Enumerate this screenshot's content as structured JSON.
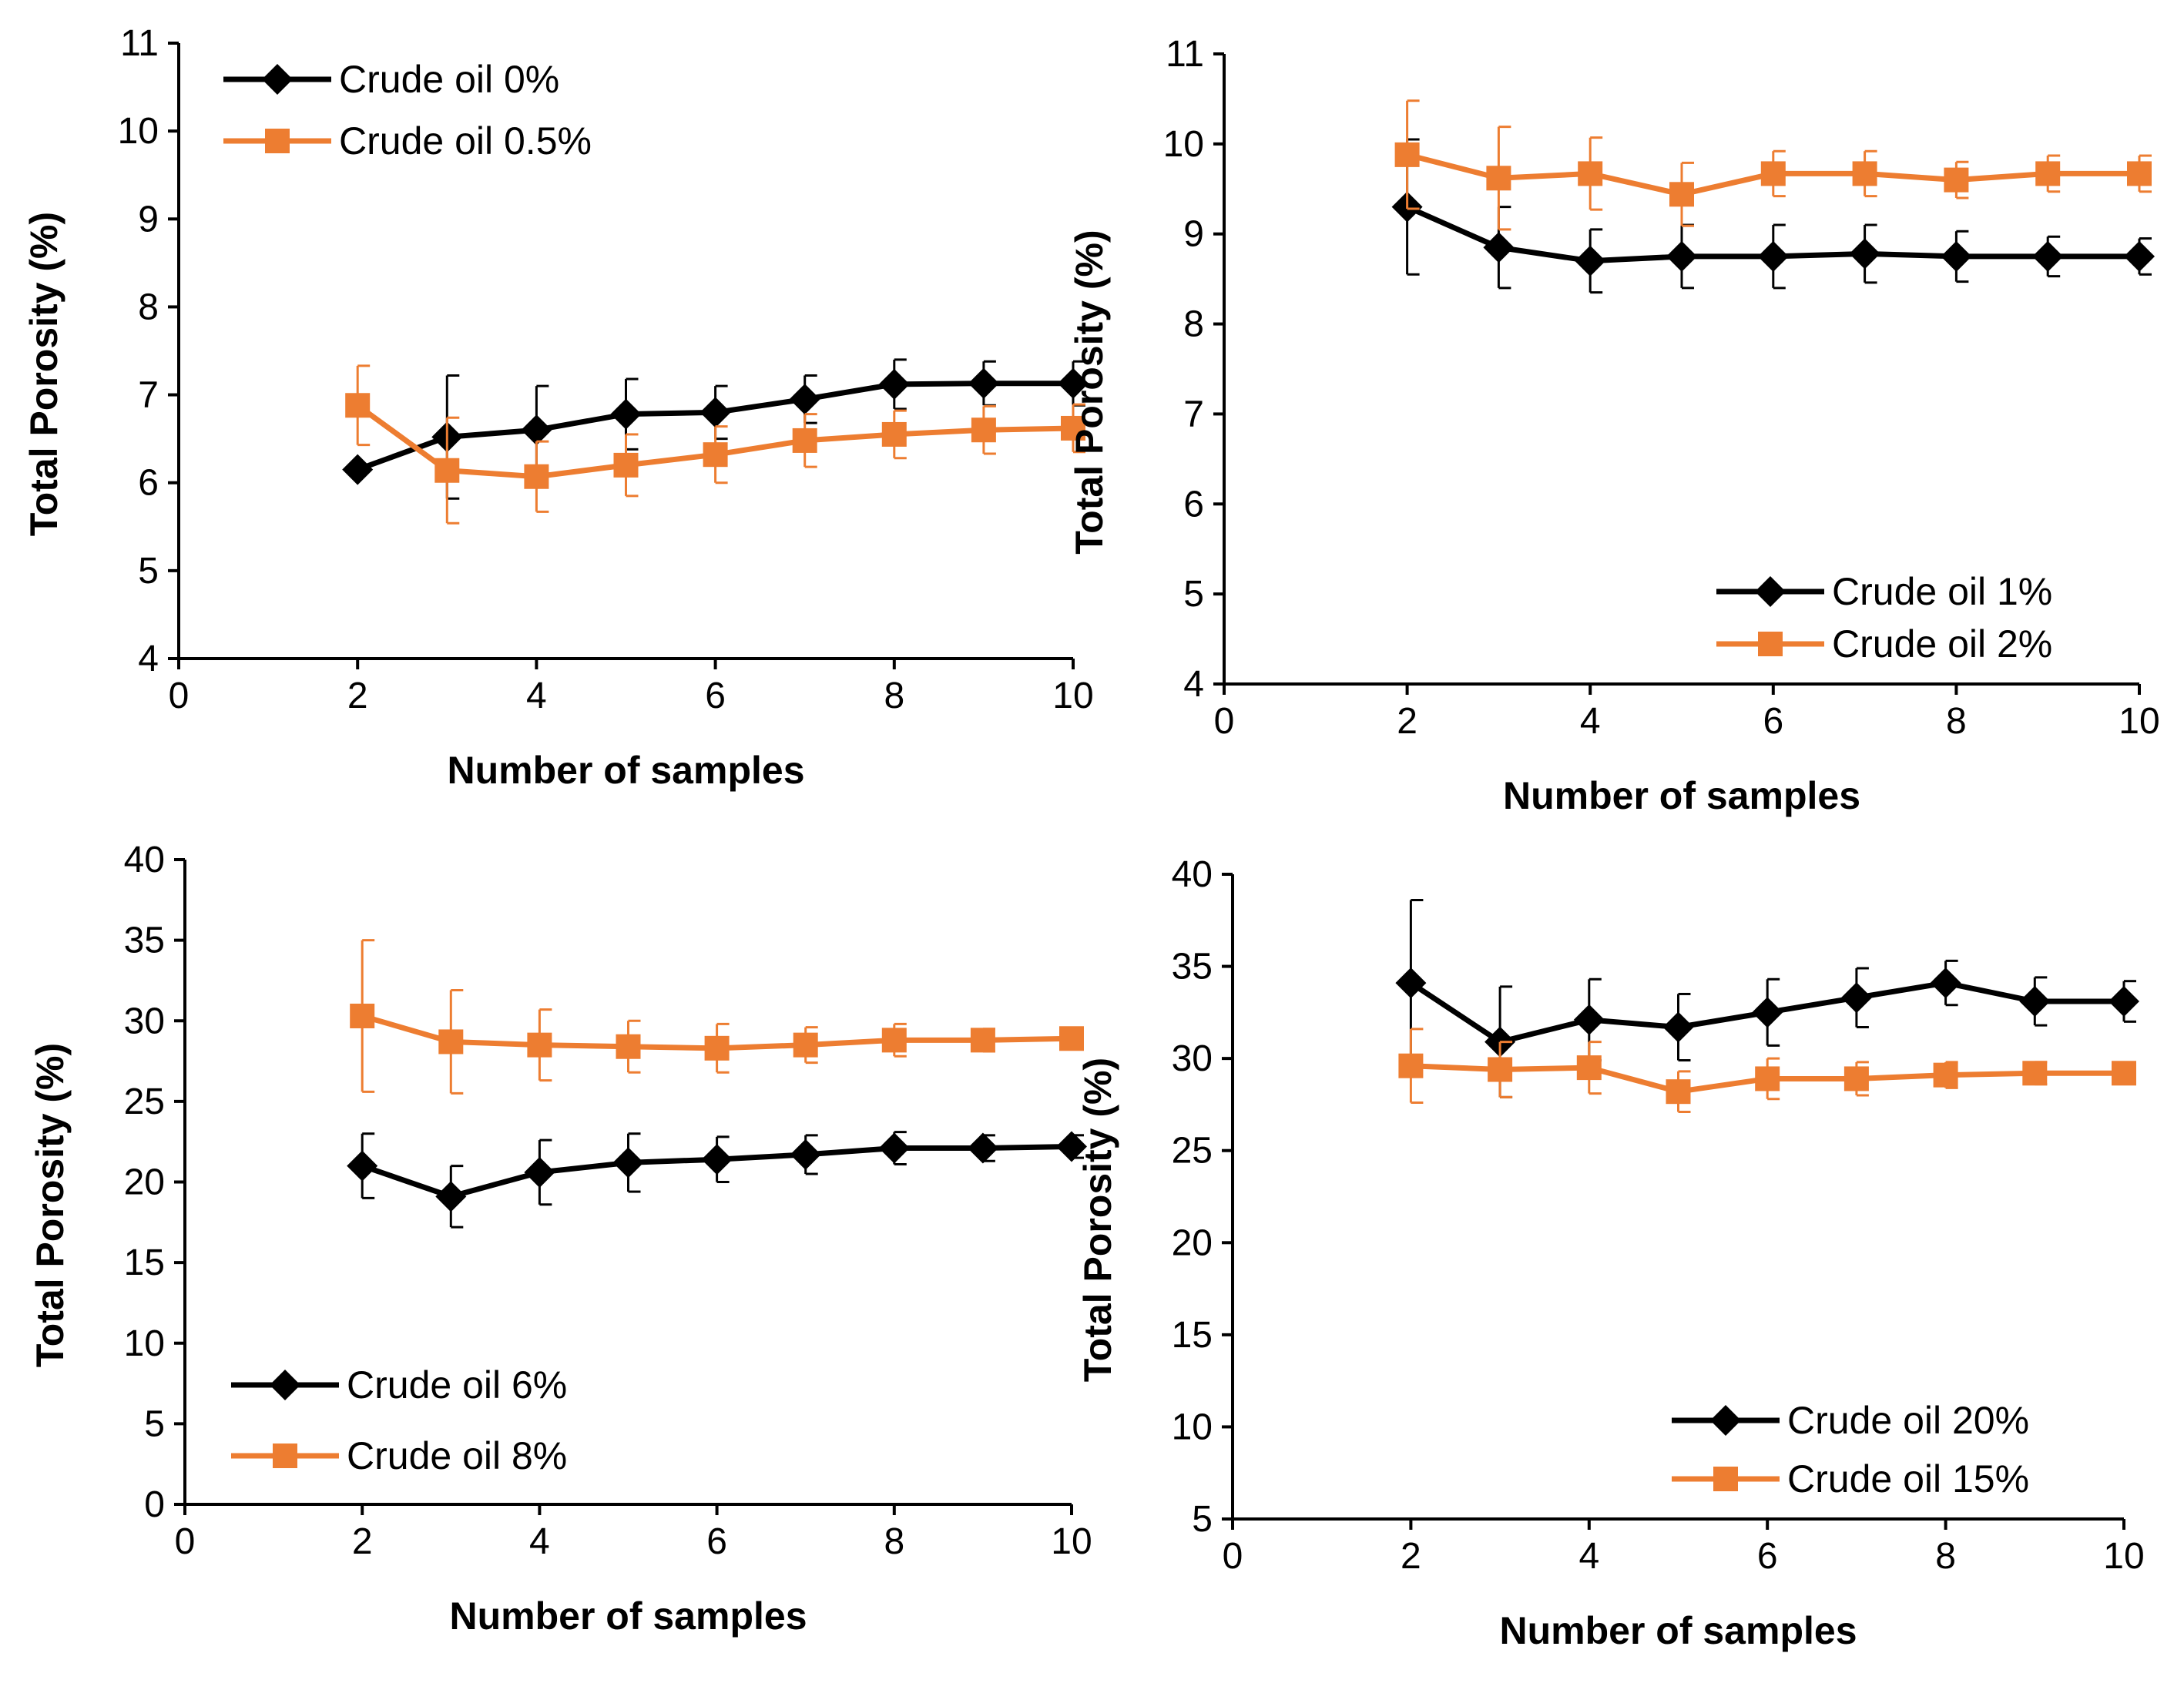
{
  "colors": {
    "black_series": "#000000",
    "orange_series": "#ED7D31"
  },
  "chart_data": [
    {
      "type": "line",
      "id": "panel-top-left",
      "xlabel": "Number of samples",
      "ylabel": "Total Porosity (%)",
      "xlim": [
        0,
        10
      ],
      "ylim": [
        4,
        11
      ],
      "xticks": [
        0,
        2,
        4,
        6,
        8,
        10
      ],
      "yticks": [
        4,
        5,
        6,
        7,
        8,
        9,
        10,
        11
      ],
      "legend_position": "top-left",
      "x": [
        2,
        3,
        4,
        5,
        6,
        7,
        8,
        9,
        10
      ],
      "series": [
        {
          "name": "Crude oil 0%",
          "marker": "diamond",
          "color": "#000000",
          "values": [
            6.15,
            6.52,
            6.6,
            6.78,
            6.8,
            6.95,
            7.12,
            7.13,
            7.13
          ],
          "error": [
            0,
            0.7,
            0.5,
            0.4,
            0.3,
            0.27,
            0.28,
            0.25,
            0.25
          ]
        },
        {
          "name": "Crude oil 0.5%",
          "marker": "square",
          "color": "#ED7D31",
          "values": [
            6.88,
            6.14,
            6.07,
            6.2,
            6.32,
            6.48,
            6.55,
            6.6,
            6.62
          ],
          "error": [
            0.45,
            0.6,
            0.4,
            0.35,
            0.32,
            0.3,
            0.27,
            0.27,
            0.27
          ]
        }
      ]
    },
    {
      "type": "line",
      "id": "panel-top-right",
      "xlabel": "Number of samples",
      "ylabel": "Total Porosity (%)",
      "xlim": [
        0,
        10
      ],
      "ylim": [
        4,
        11
      ],
      "xticks": [
        0,
        2,
        4,
        6,
        8,
        10
      ],
      "yticks": [
        4,
        5,
        6,
        7,
        8,
        9,
        10,
        11
      ],
      "legend_position": "bottom-right",
      "x": [
        2,
        3,
        4,
        5,
        6,
        7,
        8,
        9,
        10
      ],
      "series": [
        {
          "name": "Crude oil 1%",
          "marker": "diamond",
          "color": "#000000",
          "values": [
            9.3,
            8.85,
            8.7,
            8.75,
            8.75,
            8.78,
            8.75,
            8.75,
            8.75
          ],
          "error": [
            0.75,
            0.45,
            0.35,
            0.35,
            0.35,
            0.32,
            0.28,
            0.22,
            0.2
          ]
        },
        {
          "name": "Crude oil 2%",
          "marker": "square",
          "color": "#ED7D31",
          "values": [
            9.88,
            9.62,
            9.67,
            9.44,
            9.67,
            9.67,
            9.6,
            9.67,
            9.67
          ],
          "error": [
            0.6,
            0.57,
            0.4,
            0.35,
            0.25,
            0.25,
            0.2,
            0.2,
            0.2
          ]
        }
      ]
    },
    {
      "type": "line",
      "id": "panel-bottom-left",
      "xlabel": "Number of samples",
      "ylabel": "Total Porosity (%)",
      "xlim": [
        0,
        10
      ],
      "ylim": [
        0,
        40
      ],
      "xticks": [
        0,
        2,
        4,
        6,
        8,
        10
      ],
      "yticks": [
        0,
        5,
        10,
        15,
        20,
        25,
        30,
        35,
        40
      ],
      "legend_position": "bottom-left",
      "x": [
        2,
        3,
        4,
        5,
        6,
        7,
        8,
        9,
        10
      ],
      "series": [
        {
          "name": "Crude oil 6%",
          "marker": "diamond",
          "color": "#000000",
          "values": [
            21.0,
            19.1,
            20.6,
            21.2,
            21.4,
            21.7,
            22.1,
            22.1,
            22.2
          ],
          "error": [
            2.0,
            1.9,
            2.0,
            1.8,
            1.4,
            1.2,
            1.0,
            0.8,
            0.7
          ]
        },
        {
          "name": "Crude oil 8%",
          "marker": "square",
          "color": "#ED7D31",
          "values": [
            30.3,
            28.7,
            28.5,
            28.4,
            28.3,
            28.5,
            28.8,
            28.8,
            28.9
          ],
          "error": [
            4.7,
            3.2,
            2.2,
            1.6,
            1.5,
            1.1,
            1.0,
            0.7,
            0.6
          ]
        }
      ]
    },
    {
      "type": "line",
      "id": "panel-bottom-right",
      "xlabel": "Number of samples",
      "ylabel": "Total Porosity (%)",
      "xlim": [
        0,
        10
      ],
      "ylim": [
        5,
        40
      ],
      "xticks": [
        0,
        2,
        4,
        6,
        8,
        10
      ],
      "yticks": [
        5,
        10,
        15,
        20,
        25,
        30,
        35,
        40
      ],
      "legend_position": "bottom-right",
      "x": [
        2,
        3,
        4,
        5,
        6,
        7,
        8,
        9,
        10
      ],
      "series": [
        {
          "name": "Crude oil 20%",
          "marker": "diamond",
          "color": "#000000",
          "values": [
            34.1,
            30.9,
            32.1,
            31.7,
            32.5,
            33.3,
            34.1,
            33.1,
            33.1
          ],
          "error": [
            4.5,
            3.0,
            2.2,
            1.8,
            1.8,
            1.6,
            1.2,
            1.3,
            1.1
          ]
        },
        {
          "name": "Crude oil 15%",
          "marker": "square",
          "color": "#ED7D31",
          "values": [
            29.6,
            29.4,
            29.5,
            28.2,
            28.9,
            28.9,
            29.1,
            29.2,
            29.2
          ],
          "error": [
            2.0,
            1.5,
            1.4,
            1.1,
            1.1,
            0.9,
            0.7,
            0.6,
            0.5
          ]
        }
      ]
    }
  ]
}
